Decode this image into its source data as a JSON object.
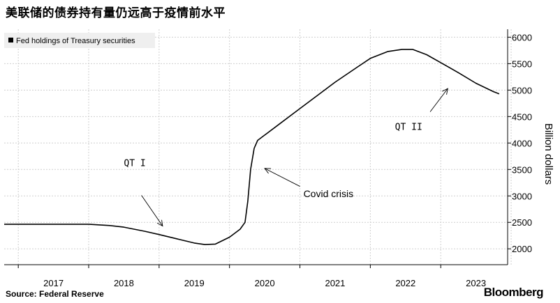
{
  "title": "美联储的债券持有量仍远高于疫情前水平",
  "source": "Source: Federal Reserve",
  "brand": "Bloomberg",
  "chart_data": {
    "type": "line",
    "ylabel": "Billion dollars",
    "ylim": [
      1700,
      6150
    ],
    "xlim": [
      2016.3,
      2023.45
    ],
    "y_ticks": [
      2000,
      2500,
      3000,
      3500,
      4000,
      4500,
      5000,
      5500,
      6000
    ],
    "x_ticks": [
      {
        "label": "2017",
        "pos": 2017.0
      },
      {
        "label": "2018",
        "pos": 2018.0
      },
      {
        "label": "2019",
        "pos": 2019.0
      },
      {
        "label": "2020",
        "pos": 2020.0
      },
      {
        "label": "2021",
        "pos": 2021.0
      },
      {
        "label": "2022",
        "pos": 2022.0
      },
      {
        "label": "2023",
        "pos": 2023.0
      }
    ],
    "grid": true,
    "legend_position": "top-left",
    "series": [
      {
        "name": "Fed holdings of Treasury securities",
        "color": "#000000",
        "x": [
          2016.3,
          2017.0,
          2017.5,
          2017.8,
          2018.0,
          2018.3,
          2018.5,
          2018.75,
          2019.0,
          2019.15,
          2019.3,
          2019.5,
          2019.65,
          2019.72,
          2019.76,
          2019.8,
          2019.85,
          2019.9,
          2020.0,
          2020.2,
          2020.5,
          2020.8,
          2021.0,
          2021.3,
          2021.5,
          2021.75,
          2021.95,
          2022.1,
          2022.3,
          2022.5,
          2022.75,
          2023.0,
          2023.25,
          2023.33
        ],
        "y": [
          2465,
          2465,
          2465,
          2440,
          2410,
          2330,
          2270,
          2190,
          2110,
          2080,
          2090,
          2220,
          2370,
          2500,
          2900,
          3500,
          3900,
          4050,
          4150,
          4350,
          4650,
          4950,
          5150,
          5420,
          5600,
          5730,
          5770,
          5770,
          5670,
          5520,
          5330,
          5130,
          4970,
          4930
        ]
      }
    ],
    "annotations": [
      {
        "text": "QT I",
        "x": 2018.0,
        "y": 3560,
        "arrow_to_x": 2018.55,
        "arrow_to_y": 2430,
        "arrow_from_x": 2018.25,
        "arrow_from_y": 3010
      },
      {
        "text": "Covid crisis",
        "x": 2020.55,
        "y": 2980,
        "arrow_to_x": 2020.0,
        "arrow_to_y": 3520,
        "arrow_from_x": 2020.5,
        "arrow_from_y": 3180
      },
      {
        "text": "QT II",
        "x": 2021.85,
        "y": 4250,
        "arrow_to_x": 2022.6,
        "arrow_to_y": 5030,
        "arrow_from_x": 2022.35,
        "arrow_from_y": 4590
      }
    ]
  }
}
